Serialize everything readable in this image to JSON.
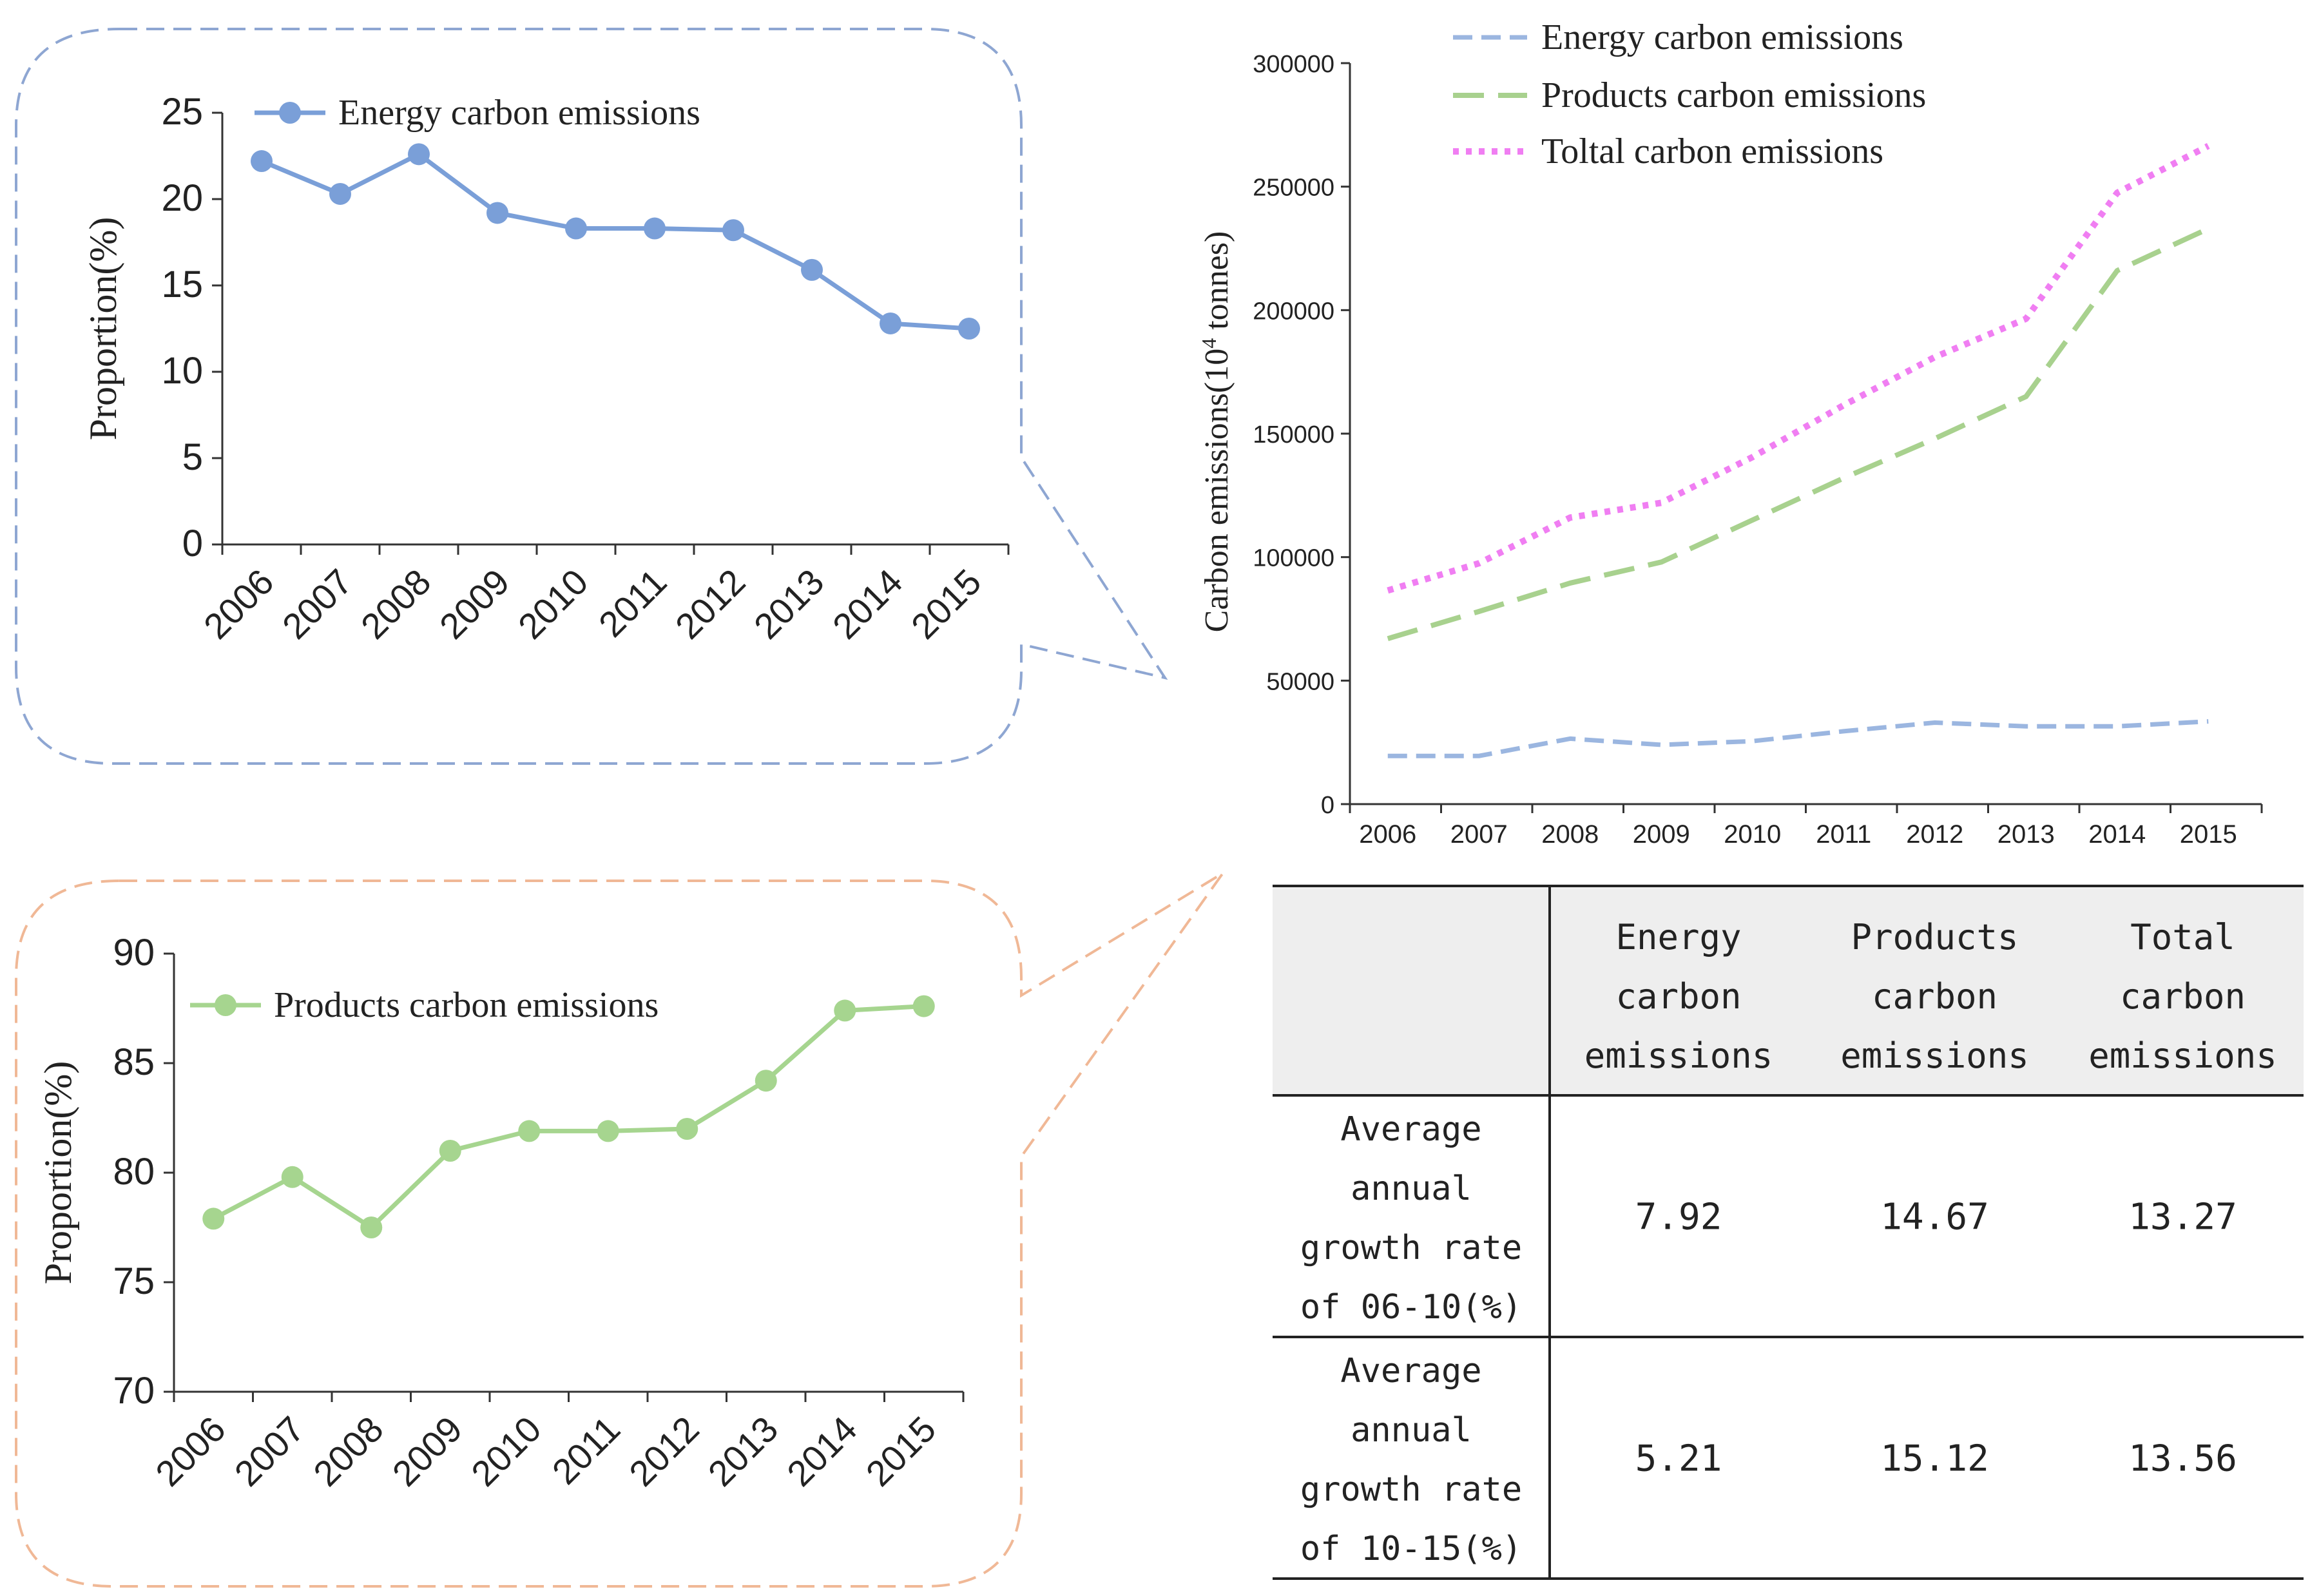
{
  "colors": {
    "energy": "#7a9fd8",
    "products": "#a6d58f",
    "total": "#f07ef2",
    "energy_dash": "#9bb6e0",
    "products_dash": "#a8d18e",
    "callout_top": "#8ea6d2",
    "callout_bottom": "#f0b896",
    "table_header_bg": "#eeeeee",
    "axis": "#333333",
    "text": "#222222"
  },
  "chart_data": [
    {
      "id": "energy-proportion",
      "type": "line",
      "title": "",
      "xlabel": "",
      "ylabel": "Proportion(%)",
      "categories": [
        "2006",
        "2007",
        "2008",
        "2009",
        "2010",
        "2011",
        "2012",
        "2013",
        "2014",
        "2015"
      ],
      "yticks": [
        "0",
        "5",
        "10",
        "15",
        "20",
        "25"
      ],
      "ylim": [
        0,
        25
      ],
      "series": [
        {
          "name": "Energy carbon emissions",
          "values": [
            22.2,
            20.3,
            22.6,
            19.2,
            18.3,
            18.3,
            18.2,
            15.9,
            12.8,
            12.5
          ]
        }
      ],
      "legend": "top"
    },
    {
      "id": "products-proportion",
      "type": "line",
      "title": "",
      "xlabel": "",
      "ylabel": "Proportion(%)",
      "categories": [
        "2006",
        "2007",
        "2008",
        "2009",
        "2010",
        "2011",
        "2012",
        "2013",
        "2014",
        "2015"
      ],
      "yticks": [
        "70",
        "75",
        "80",
        "85",
        "90"
      ],
      "ylim": [
        70,
        90
      ],
      "series": [
        {
          "name": "Products carbon emissions",
          "values": [
            77.9,
            79.8,
            77.5,
            81.0,
            81.9,
            81.9,
            82.0,
            84.2,
            87.4,
            87.6
          ]
        }
      ],
      "legend": "top"
    },
    {
      "id": "total-emissions",
      "type": "line",
      "title": "",
      "xlabel": "",
      "ylabel": "Carbon emissions(10",
      "ylabel_sup": "4",
      "ylabel_tail": " tonnes)",
      "categories": [
        "2006",
        "2007",
        "2008",
        "2009",
        "2010",
        "2011",
        "2012",
        "2013",
        "2014",
        "2015"
      ],
      "yticks": [
        "0",
        "50000",
        "100000",
        "150000",
        "200000",
        "250000",
        "300000"
      ],
      "ylim": [
        0,
        300000
      ],
      "series": [
        {
          "name": "Energy carbon emissions",
          "values": [
            19500,
            19500,
            26500,
            24000,
            25500,
            29500,
            33000,
            31500,
            31500,
            33500
          ]
        },
        {
          "name": "Products carbon emissions",
          "values": [
            67000,
            78000,
            89500,
            98000,
            115000,
            132000,
            148000,
            165000,
            216000,
            233000
          ]
        },
        {
          "name": "Toltal carbon emissions",
          "values": [
            86500,
            97500,
            116000,
            122000,
            140500,
            161500,
            181000,
            196500,
            247500,
            266500
          ]
        }
      ],
      "legend": "top"
    },
    {
      "id": "growth-table",
      "type": "table",
      "columns": [
        "",
        "Energy carbon emissions",
        "Products carbon emissions",
        "Total carbon emissions"
      ],
      "rows": [
        {
          "label": "Average annual growth rate of 06-10(%)",
          "values": [
            "7.92",
            "14.67",
            "13.27"
          ]
        },
        {
          "label": "Average annual growth rate of 10-15(%)",
          "values": [
            "5.21",
            "15.12",
            "13.56"
          ]
        }
      ]
    }
  ],
  "table": {
    "headers": [
      [
        "Energy",
        "carbon",
        "emissions"
      ],
      [
        "Products",
        "carbon",
        "emissions"
      ],
      [
        "Total",
        "carbon",
        "emissions"
      ]
    ],
    "row_labels": [
      [
        "Average",
        "annual",
        "growth rate",
        "of 06-10(%)"
      ],
      [
        "Average",
        "annual",
        "growth rate",
        "of 10-15(%)"
      ]
    ],
    "cells": [
      [
        "7.92",
        "14.67",
        "13.27"
      ],
      [
        "5.21",
        "15.12",
        "13.56"
      ]
    ]
  }
}
